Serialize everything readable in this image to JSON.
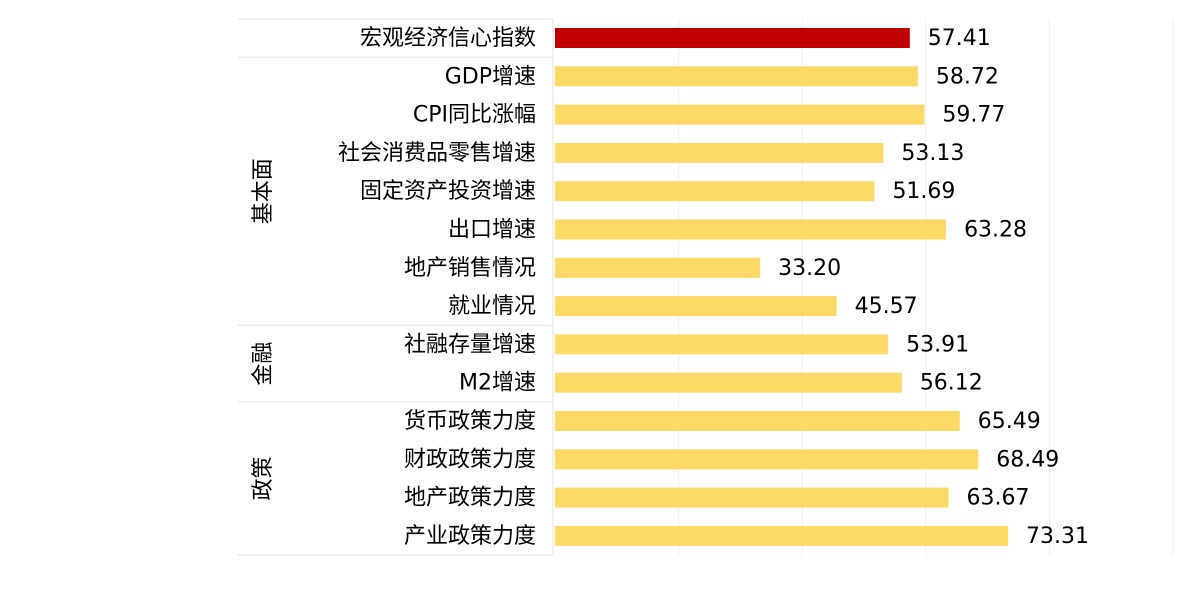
{
  "chart_data": {
    "type": "bar",
    "orientation": "horizontal",
    "categories": [
      "宏观经济信心指数",
      "GDP增速",
      "CPI同比涨幅",
      "社会消费品零售增速",
      "固定资产投资增速",
      "出口增速",
      "地产销售情况",
      "就业情况",
      "社融存量增速",
      "M2增速",
      "货币政策力度",
      "财政政策力度",
      "地产政策力度",
      "产业政策力度"
    ],
    "groups": [
      null,
      "基本面",
      "基本面",
      "基本面",
      "基本面",
      "基本面",
      "基本面",
      "基本面",
      "金融",
      "金融",
      "政策",
      "政策",
      "政策",
      "政策"
    ],
    "values": [
      57.41,
      58.72,
      59.77,
      53.13,
      51.69,
      63.28,
      33.2,
      45.57,
      53.91,
      56.12,
      65.49,
      68.49,
      63.67,
      73.31
    ],
    "value_labels": [
      "57.41",
      "58.72",
      "59.77",
      "53.13",
      "51.69",
      "63.28",
      "33.20",
      "45.57",
      "53.91",
      "56.12",
      "65.49",
      "68.49",
      "63.67",
      "73.31"
    ],
    "colors": [
      "#c00000",
      "#ffd966",
      "#ffd966",
      "#ffd966",
      "#ffd966",
      "#ffd966",
      "#ffd966",
      "#ffd966",
      "#ffd966",
      "#ffd966",
      "#ffd966",
      "#ffd966",
      "#ffd966",
      "#ffd966"
    ],
    "xlim": [
      0,
      100
    ],
    "xticks": [
      0,
      20,
      40,
      60,
      80,
      100
    ],
    "tick_labels": false,
    "grid": true
  }
}
